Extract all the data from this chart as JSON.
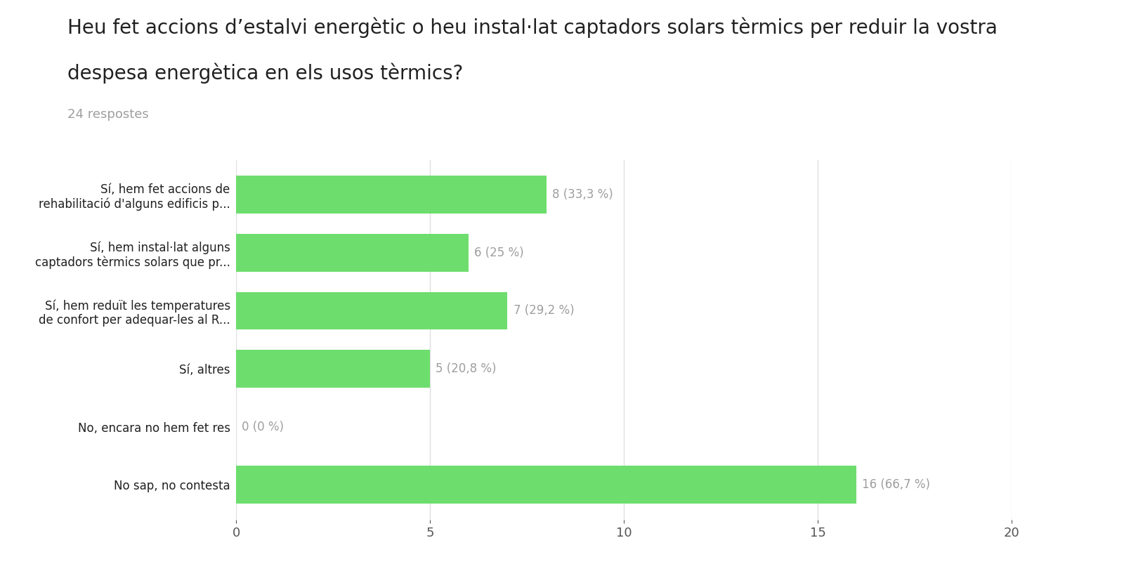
{
  "title_line1": "Heu fet accions d’estalvi energètic o heu instal·lat captadors solars tèrmics per reduir la vostra",
  "title_line2": "despesa energètica en els usos tèrmics?",
  "subtitle": "24 respostes",
  "categories": [
    "Sí, hem fet accions de\nrehabilitació d'alguns edificis p...",
    "Sí, hem instal·lat alguns\ncaptadors tèrmics solars que pr...",
    "Sí, hem reduït les temperatures\nde confort per adequar-les al R...",
    "Sí, altres",
    "No, encara no hem fet res",
    "No sap, no contesta"
  ],
  "values": [
    8,
    6,
    7,
    5,
    0,
    16
  ],
  "labels": [
    "8 (33,3 %)",
    "6 (25 %)",
    "7 (29,2 %)",
    "5 (20,8 %)",
    "0 (0 %)",
    "16 (66,7 %)"
  ],
  "bar_color": "#6ddd6d",
  "background_color": "#ffffff",
  "grid_color": "#e0e0e0",
  "text_color": "#212121",
  "label_color": "#9e9e9e",
  "xlim": [
    0,
    20
  ],
  "xticks": [
    0,
    5,
    10,
    15,
    20
  ],
  "title_fontsize": 20,
  "subtitle_fontsize": 13,
  "category_fontsize": 12,
  "label_fontsize": 12,
  "tick_fontsize": 13
}
